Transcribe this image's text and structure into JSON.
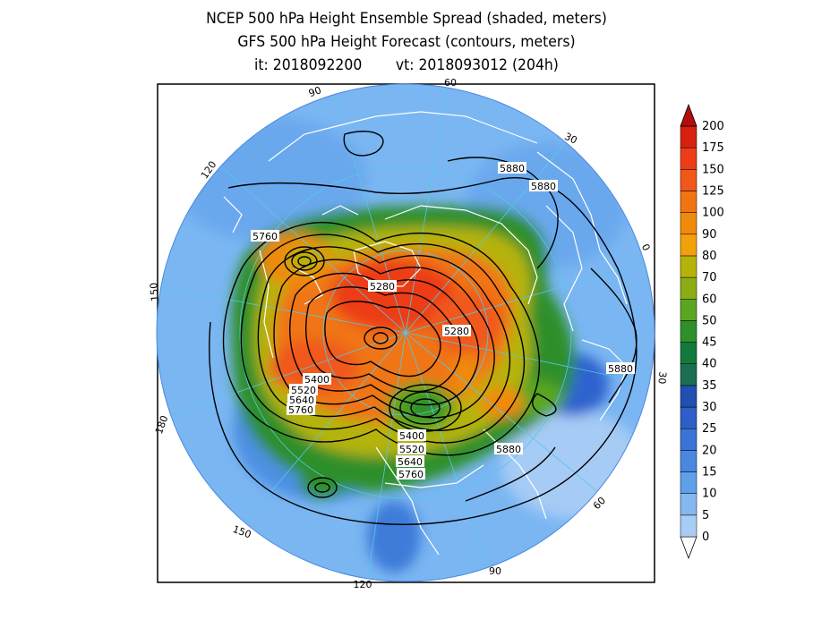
{
  "titles": {
    "line1": "NCEP 500 hPa Height Ensemble Spread (shaded, meters)",
    "line2": "GFS 500 hPa Height Forecast (contours, meters)",
    "line3_it": "it: 2018092200",
    "line3_vt": "vt: 2018093012 (204h)"
  },
  "longitude_labels": [
    "60",
    "30",
    "0",
    "30",
    "60",
    "90",
    "120",
    "150",
    "180",
    "150",
    "120",
    "90"
  ],
  "contour_labels": [
    "5880",
    "5880",
    "5760",
    "5280",
    "5280",
    "5400",
    "5520",
    "5640",
    "5760",
    "5880",
    "5400",
    "5520",
    "5640",
    "5760",
    "5880"
  ],
  "colorbar": {
    "levels": [
      "0",
      "5",
      "10",
      "15",
      "20",
      "25",
      "30",
      "35",
      "40",
      "45",
      "50",
      "60",
      "70",
      "80",
      "90",
      "100",
      "125",
      "150",
      "175",
      "200"
    ],
    "colors": [
      "#a8cdf5",
      "#86b8f0",
      "#5fa0ea",
      "#4a88e0",
      "#3a74d6",
      "#2d5fc6",
      "#2050b0",
      "#1b6e50",
      "#137a3d",
      "#2f8f2a",
      "#5aa623",
      "#8cad16",
      "#b5b30a",
      "#f2a00c",
      "#f08a0a",
      "#f07412",
      "#f0581a",
      "#ec3d17",
      "#d8200f",
      "#b50d0b"
    ]
  },
  "colors": {
    "ocean": "#7ab6f2",
    "frame": "#000000",
    "coast": "#ffffff",
    "gridline": "#55c8e8",
    "contour": "#000000"
  }
}
